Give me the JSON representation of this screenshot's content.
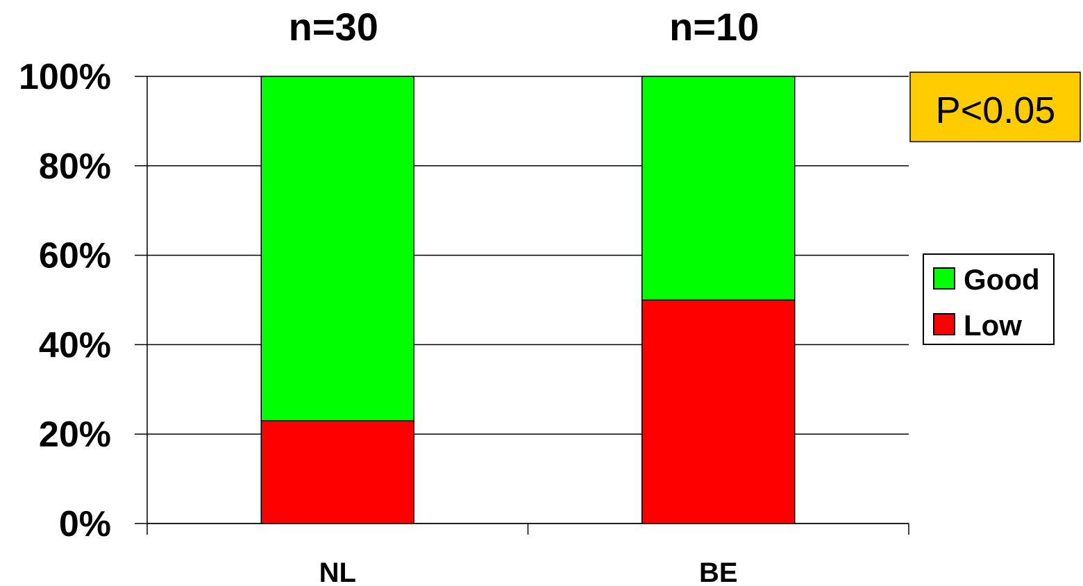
{
  "chart_data": {
    "type": "bar",
    "stacked": true,
    "categories": [
      "NL",
      "BE"
    ],
    "category_annotations": [
      "n=30",
      "n=10"
    ],
    "series": [
      {
        "name": "Low",
        "values": [
          23,
          50
        ],
        "color": "#ff0000"
      },
      {
        "name": "Good",
        "values": [
          77,
          50
        ],
        "color": "#00ff00"
      }
    ],
    "y_ticks": [
      "0%",
      "20%",
      "40%",
      "60%",
      "80%",
      "100%"
    ],
    "ylim": [
      0,
      100
    ],
    "grid": true,
    "legend": {
      "position": "right",
      "entries": [
        "Good",
        "Low"
      ]
    },
    "annotation": {
      "text": "P<0.05",
      "background": "#ffcc00",
      "position": "top-right"
    }
  }
}
